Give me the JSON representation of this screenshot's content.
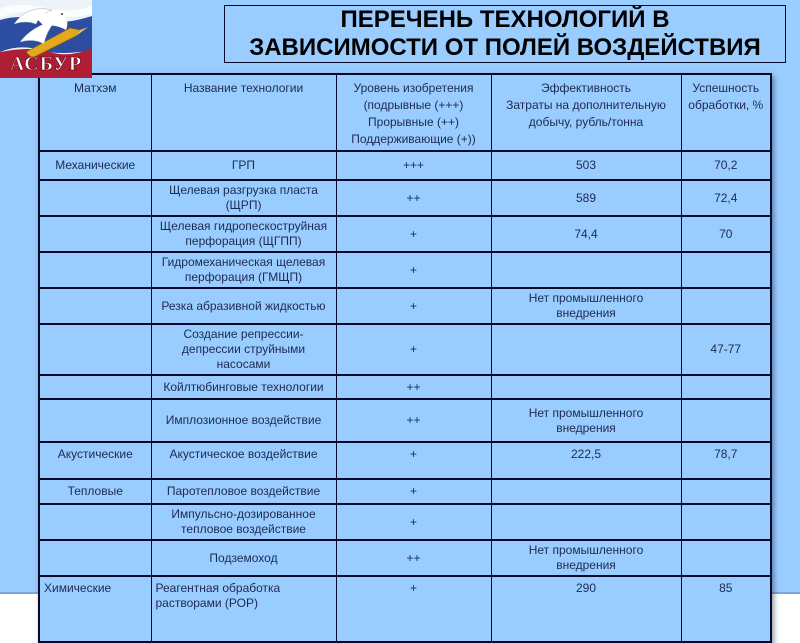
{
  "logo": {
    "text": "АСБУР"
  },
  "slide": {
    "title_line1": "ПЕРЕЧЕНЬ ТЕХНОЛОГИЙ В",
    "title_line2": "ЗАВИСИМОСТИ ОТ ПОЛЕЙ ВОЗДЕЙСТВИЯ"
  },
  "table": {
    "headers": [
      {
        "lines": [
          "Матхэм"
        ]
      },
      {
        "lines": [
          "Название технологии"
        ]
      },
      {
        "lines": [
          "Уровень изобретения",
          "(подрывные (+++)",
          "Прорывные (++)",
          "Поддерживающие (+))"
        ]
      },
      {
        "lines": [
          "Эффективность",
          "Затраты на дополнительную добычу, рубль/тонна"
        ]
      },
      {
        "lines": [
          "Успешность",
          "обработки, %"
        ]
      }
    ],
    "rows": [
      {
        "category": "Механические",
        "name": "ГРП",
        "level": "+++",
        "effectiveness": "503",
        "success": "70,2"
      },
      {
        "category": "",
        "name": "Щелевая разгрузка пласта (ЩРП)",
        "level": "++",
        "effectiveness": "589",
        "success": "72,4"
      },
      {
        "category": "",
        "name": "Щелевая гидропескоструйная перфорация (ЩГПП)",
        "level": "+",
        "effectiveness": "74,4",
        "success": "70"
      },
      {
        "category": "",
        "name": "Гидромеханическая щелевая перфорация (ГМЩП)",
        "level": "+",
        "effectiveness": "",
        "success": ""
      },
      {
        "category": "",
        "name": "Резка абразивной жидкостью",
        "level": "+",
        "effectiveness": "Нет промышленного внедрения",
        "success": ""
      },
      {
        "category": "",
        "name": "Создание репрессии-депрессии струйными насосами",
        "level": "+",
        "effectiveness": "",
        "success": "47-77"
      },
      {
        "category": "",
        "name": "Койлтюбинговые технологии",
        "level": "++",
        "effectiveness": "",
        "success": ""
      },
      {
        "category": "",
        "name": "Имплозионное воздействие",
        "level": "++",
        "effectiveness": "Нет промышленного внедрения",
        "success": ""
      },
      {
        "category": "Акустические",
        "name": "Акустическое воздействие",
        "level": "+",
        "effectiveness": "222,5",
        "success": "78,7"
      },
      {
        "category": "Тепловые",
        "name": "Паротепловое воздействие",
        "level": "+",
        "effectiveness": "",
        "success": ""
      },
      {
        "category": "",
        "name": "Импульсно-дозированное тепловое воздействие",
        "level": "+",
        "effectiveness": "",
        "success": ""
      },
      {
        "category": "",
        "name": "Подземоход",
        "level": "++",
        "effectiveness": "Нет промышленного внедрения",
        "success": ""
      },
      {
        "category": "Химические",
        "name": "Реагентная обработка растворами (РОР)",
        "level": "+",
        "effectiveness": "290",
        "success": "85"
      }
    ]
  },
  "colors": {
    "slide_bg": "#99CCFF",
    "text": "#1E2A50",
    "border": "#050A28",
    "title_text": "#000000",
    "logo_flag_white": "#EEF3FA",
    "logo_flag_blue": "#2C4DA0",
    "logo_flag_red": "#B01E36",
    "logo_gold": "#E3A81E"
  }
}
